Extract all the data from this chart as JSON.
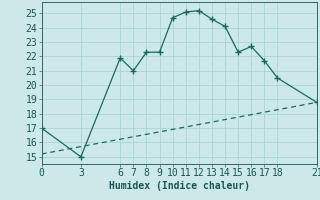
{
  "title": "",
  "xlabel": "Humidex (Indice chaleur)",
  "ylabel": "",
  "background_color": "#cce8e8",
  "line_color": "#1a6b5e",
  "grid_color": "#aad4d4",
  "xlim": [
    0,
    21
  ],
  "ylim": [
    14.5,
    25.8
  ],
  "xticks": [
    0,
    3,
    6,
    7,
    8,
    9,
    10,
    11,
    12,
    13,
    14,
    15,
    16,
    17,
    18,
    21
  ],
  "yticks": [
    15,
    16,
    17,
    18,
    19,
    20,
    21,
    22,
    23,
    24,
    25
  ],
  "line1_x": [
    0,
    3,
    6,
    7,
    8,
    9,
    10,
    11,
    12,
    13,
    14,
    15,
    16,
    17,
    18,
    21
  ],
  "line1_y": [
    17.0,
    15.0,
    21.9,
    21.0,
    22.3,
    22.3,
    24.7,
    25.1,
    25.2,
    24.6,
    24.1,
    22.3,
    22.7,
    21.7,
    20.5,
    18.8
  ],
  "line2_x": [
    0,
    21
  ],
  "line2_y": [
    15.2,
    18.8
  ],
  "marker": "+",
  "marker_size": 5,
  "linewidth": 0.9,
  "font_size": 7,
  "xlabel_fontsize": 7
}
